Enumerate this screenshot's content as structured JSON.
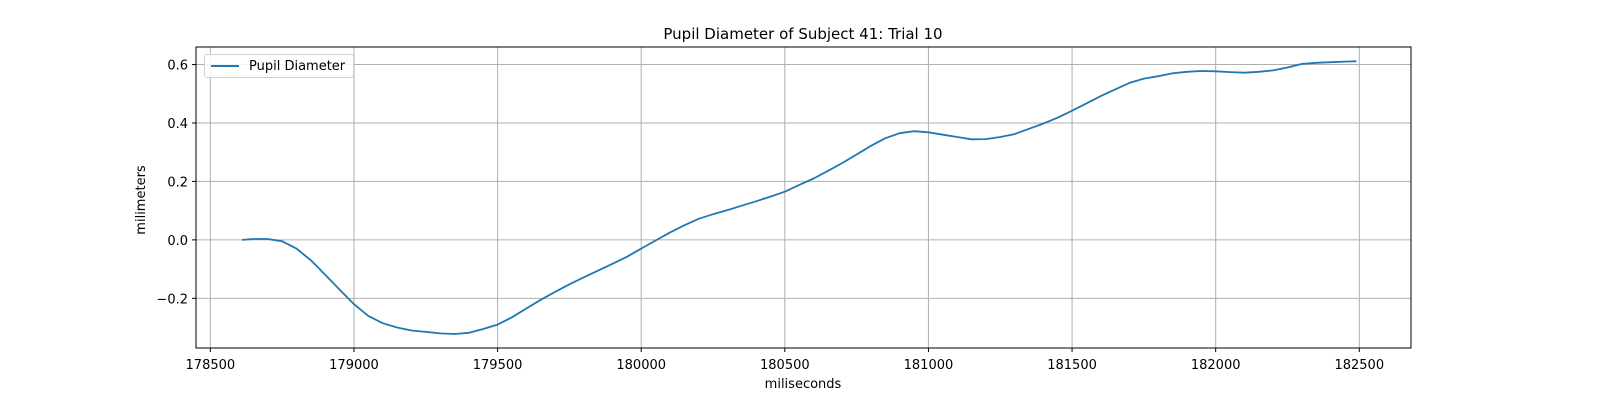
{
  "chart_data": {
    "type": "line",
    "title": "Pupil Diameter of Subject 41: Trial 10",
    "xlabel": "miliseconds",
    "ylabel": "milimeters",
    "xlim": [
      178450,
      182680
    ],
    "ylim": [
      -0.37,
      0.66
    ],
    "x_ticks": [
      178500,
      179000,
      179500,
      180000,
      180500,
      181000,
      181500,
      182000,
      182500
    ],
    "y_ticks": [
      -0.2,
      0.0,
      0.2,
      0.4,
      0.6
    ],
    "y_tick_labels": [
      "−0.2",
      "0.0",
      "0.2",
      "0.4",
      "0.6"
    ],
    "grid": true,
    "legend_position": "upper-left",
    "series": [
      {
        "name": "Pupil Diameter",
        "color": "#1f77b4",
        "x": [
          178610,
          178650,
          178700,
          178750,
          178800,
          178850,
          178900,
          178950,
          179000,
          179050,
          179100,
          179150,
          179200,
          179250,
          179300,
          179350,
          179400,
          179450,
          179500,
          179550,
          179600,
          179650,
          179700,
          179750,
          179800,
          179850,
          179900,
          179950,
          180000,
          180050,
          180100,
          180150,
          180200,
          180250,
          180300,
          180350,
          180400,
          180450,
          180500,
          180550,
          180600,
          180650,
          180700,
          180750,
          180800,
          180850,
          180900,
          180950,
          181000,
          181050,
          181100,
          181150,
          181200,
          181250,
          181300,
          181350,
          181400,
          181450,
          181500,
          181550,
          181600,
          181650,
          181700,
          181750,
          181800,
          181850,
          181900,
          181950,
          182000,
          182050,
          182100,
          182150,
          182200,
          182250,
          182300,
          182350,
          182400,
          182450,
          182490
        ],
        "y": [
          0.0,
          0.003,
          0.003,
          -0.005,
          -0.03,
          -0.07,
          -0.12,
          -0.17,
          -0.22,
          -0.26,
          -0.285,
          -0.3,
          -0.31,
          -0.315,
          -0.32,
          -0.322,
          -0.318,
          -0.305,
          -0.29,
          -0.265,
          -0.235,
          -0.205,
          -0.178,
          -0.152,
          -0.128,
          -0.105,
          -0.082,
          -0.058,
          -0.03,
          -0.002,
          0.025,
          0.05,
          0.072,
          0.088,
          0.102,
          0.117,
          0.132,
          0.148,
          0.165,
          0.188,
          0.21,
          0.236,
          0.263,
          0.292,
          0.322,
          0.348,
          0.365,
          0.372,
          0.368,
          0.36,
          0.352,
          0.344,
          0.345,
          0.352,
          0.362,
          0.38,
          0.398,
          0.418,
          0.442,
          0.467,
          0.492,
          0.515,
          0.537,
          0.552,
          0.56,
          0.57,
          0.575,
          0.578,
          0.577,
          0.574,
          0.572,
          0.575,
          0.58,
          0.59,
          0.602,
          0.606,
          0.608,
          0.61,
          0.611
        ]
      }
    ]
  }
}
